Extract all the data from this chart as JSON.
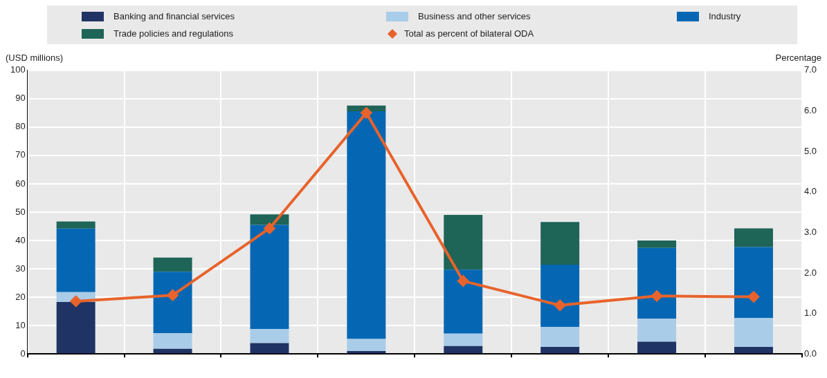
{
  "chart_data": {
    "type": "bar",
    "stacked": true,
    "categories": [
      null,
      null,
      null,
      null,
      null,
      null,
      null,
      null
    ],
    "ylabel": "(USD millions)",
    "y2label": "Percentage",
    "series": [
      {
        "name": "Banking and financial services",
        "color": "#1f3465",
        "values": [
          18.3,
          1.8,
          3.8,
          1,
          2.8,
          2.5,
          4.3,
          2.5
        ]
      },
      {
        "name": "Business and other services",
        "color": "#a9cce8",
        "values": [
          3.5,
          5.5,
          5,
          4.3,
          4.4,
          7,
          8.1,
          10.2
        ]
      },
      {
        "name": "Industry",
        "color": "#0567b3",
        "values": [
          22.4,
          21.7,
          36.7,
          80.3,
          22.5,
          22,
          25,
          25
        ]
      },
      {
        "name": "Trade policies and regulations",
        "color": "#1e6457",
        "values": [
          2.5,
          5,
          3.7,
          2,
          19.3,
          15,
          2.6,
          6.6
        ]
      },
      {
        "name": "Total as percent of bilateral ODA",
        "color": "#e8632b",
        "type": "line",
        "axis": "y2",
        "marker": "diamond",
        "values": [
          1.3,
          1.45,
          3.1,
          5.95,
          1.8,
          1.2,
          1.43,
          1.41
        ]
      }
    ],
    "ylim": [
      0,
      100
    ],
    "yticks": [
      0,
      10,
      20,
      30,
      40,
      50,
      60,
      70,
      80,
      90,
      100
    ],
    "y2lim": [
      0,
      7
    ],
    "y2ticks": [
      {
        "value": 0,
        "label": "0.0"
      },
      {
        "value": 1,
        "label": "1.0"
      },
      {
        "value": 2,
        "label": "2.0"
      },
      {
        "value": 3,
        "label": "3.0"
      },
      {
        "value": 4,
        "label": "4.0"
      },
      {
        "value": 5,
        "label": "5.0"
      },
      {
        "value": 6,
        "label": "6.0"
      },
      {
        "value": 7,
        "label": "7.0"
      }
    ],
    "grid": true,
    "legend": "top",
    "tick_labels": "y"
  }
}
